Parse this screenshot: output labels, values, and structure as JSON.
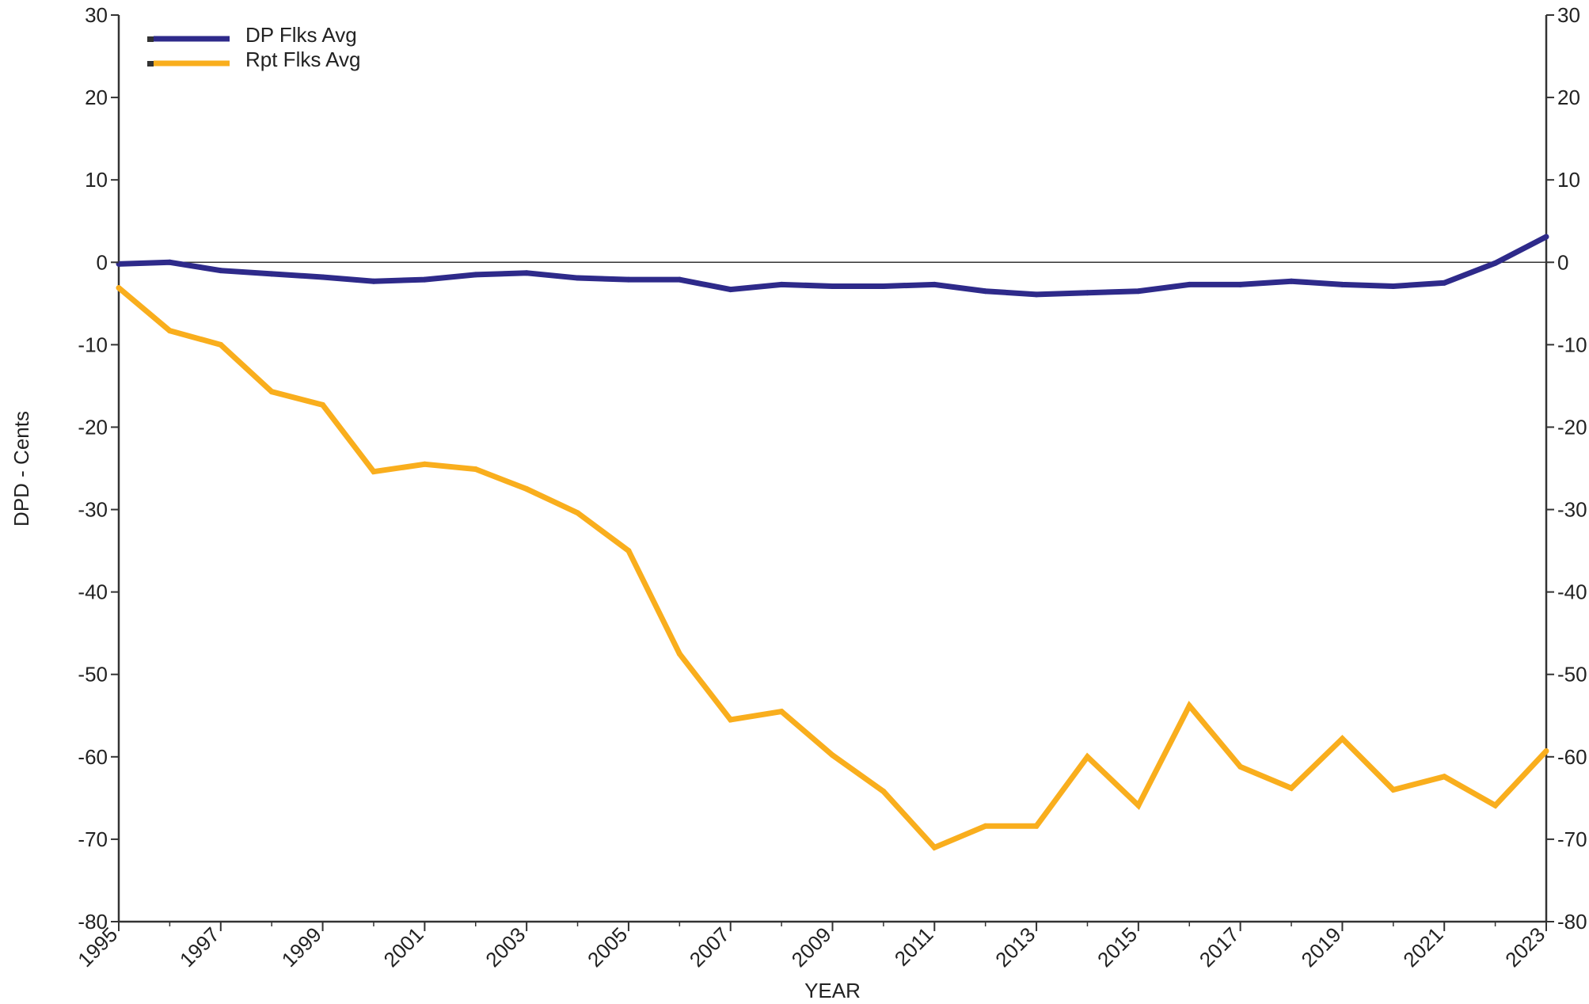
{
  "chart_data": {
    "type": "line",
    "xlabel": "YEAR",
    "ylabel": "DPD - Cents",
    "xlim": [
      1995,
      2023
    ],
    "ylim": [
      -80,
      30
    ],
    "y_ticks": [
      30,
      20,
      10,
      0,
      -10,
      -20,
      -30,
      -40,
      -50,
      -60,
      -70,
      -80
    ],
    "x_tick_labels": [
      "1995",
      "1997",
      "1999",
      "2001",
      "2003",
      "2005",
      "2007",
      "2009",
      "2011",
      "2013",
      "2015",
      "2017",
      "2019",
      "2021",
      "2023"
    ],
    "y_axis_right_mirror": true,
    "zero_line": true,
    "legend_position": "top-left",
    "x": [
      1995,
      1996,
      1997,
      1998,
      1999,
      2000,
      2001,
      2002,
      2003,
      2004,
      2005,
      2006,
      2007,
      2008,
      2009,
      2010,
      2011,
      2012,
      2013,
      2014,
      2015,
      2016,
      2017,
      2018,
      2019,
      2020,
      2021,
      2022,
      2023
    ],
    "series": [
      {
        "name": "DP Flks Avg",
        "color": "#2e2a8a",
        "values": [
          -0.2,
          0.0,
          -1.0,
          -1.4,
          -1.8,
          -2.3,
          -2.1,
          -1.5,
          -1.3,
          -1.9,
          -2.1,
          -2.1,
          -3.3,
          -2.7,
          -2.9,
          -2.9,
          -2.7,
          -3.5,
          -3.9,
          -3.7,
          -3.5,
          -2.7,
          -2.7,
          -2.3,
          -2.7,
          -2.9,
          -2.5,
          -0.1,
          3.1
        ]
      },
      {
        "name": "Rpt Flks Avg",
        "color": "#f9ae1d",
        "values": [
          -3.1,
          -8.3,
          -10.0,
          -15.7,
          -17.3,
          -25.4,
          -24.5,
          -25.1,
          -27.5,
          -30.4,
          -35.0,
          -47.5,
          -55.5,
          -54.5,
          -59.8,
          -64.2,
          -71.0,
          -68.4,
          -68.4,
          -60.0,
          -65.9,
          -53.8,
          -61.2,
          -63.8,
          -57.8,
          -64.0,
          -62.4,
          -65.9,
          -59.3
        ]
      }
    ]
  }
}
